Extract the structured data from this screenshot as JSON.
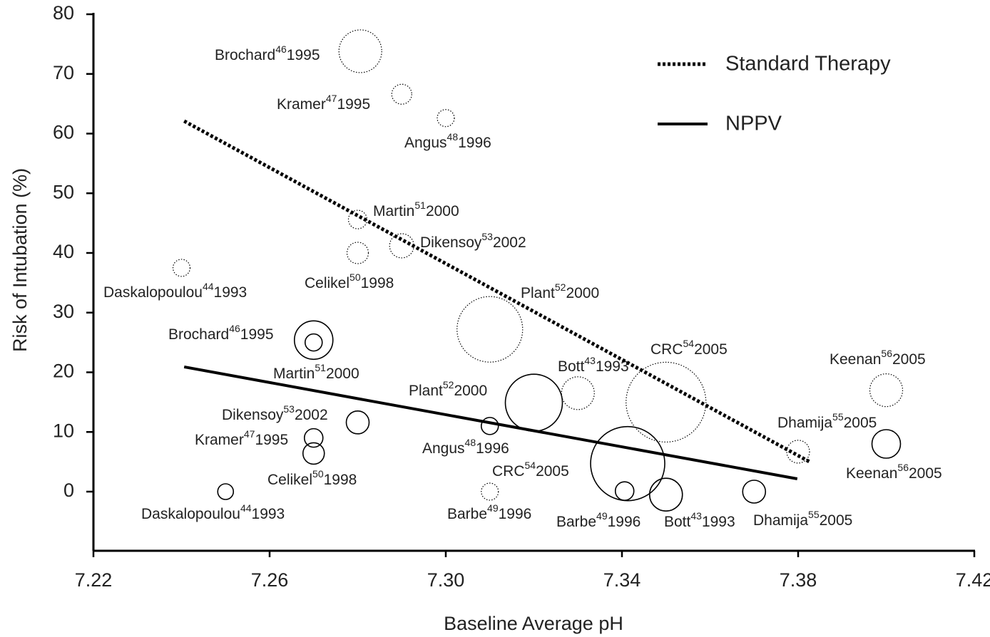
{
  "chart_data": {
    "type": "bubble",
    "xlabel": "Baseline Average pH",
    "ylabel": "Risk of Intubation (%)",
    "xlim": [
      7.22,
      7.42
    ],
    "xticks": [
      7.22,
      7.26,
      {
        "value": 7.3,
        "label": "7.30"
      },
      7.34,
      7.38,
      7.42
    ],
    "ylim": [
      -10,
      80
    ],
    "yticks": [
      0,
      10,
      20,
      30,
      40,
      50,
      60,
      70,
      80
    ],
    "grid": false,
    "legend": "upper right",
    "series": [
      {
        "name": "Standard Therapy",
        "color": "#000000",
        "line_style": "dotted",
        "x": [
          7.2806,
          7.29,
          7.3,
          7.28,
          7.29,
          7.28,
          7.24,
          7.31,
          7.33,
          7.35,
          7.4,
          7.38,
          7.31
        ],
        "y": [
          73.8,
          66.6,
          62.6,
          45.6,
          41.2,
          40,
          37.5,
          27.2,
          16.5,
          15,
          17,
          6.7,
          0
        ],
        "sizes": [
          30,
          14,
          12,
          13,
          17,
          15,
          12,
          46,
          23,
          56,
          23,
          16,
          12
        ],
        "labels": [
          {
            "name": "Brochard",
            "ref": "46",
            "year": "1995"
          },
          {
            "name": "Kramer",
            "ref": "47",
            "year": "1995"
          },
          {
            "name": "Angus",
            "ref": "48",
            "year": "1996"
          },
          {
            "name": "Martin",
            "ref": "51",
            "year": "2000"
          },
          {
            "name": "Dikensoy",
            "ref": "53",
            "year": "2002"
          },
          {
            "name": "Celikel",
            "ref": "50",
            "year": "1998"
          },
          {
            "name": "Daskalopoulou",
            "ref": "44",
            "year": "1993"
          },
          {
            "name": "Plant",
            "ref": "52",
            "year": "2000"
          },
          {
            "name": "Bott",
            "ref": "43",
            "year": "1993"
          },
          {
            "name": "CRC",
            "ref": "54",
            "year": "2005"
          },
          {
            "name": "Keenan",
            "ref": "56",
            "year": "2005"
          },
          {
            "name": "Dhamija",
            "ref": "55",
            "year": "2005"
          },
          {
            "name": "Barbe",
            "ref": "49",
            "year": "1996"
          }
        ],
        "trend_x": [
          7.2406,
          7.3826
        ],
        "trend_y": [
          62.1,
          5.0
        ]
      },
      {
        "name": "NPPV",
        "color": "#000000",
        "line_style": "solid",
        "x": [
          7.27,
          7.27,
          7.28,
          7.27,
          7.27,
          7.25,
          7.32,
          7.31,
          7.3413,
          7.3406,
          7.35,
          7.37,
          7.4
        ],
        "y": [
          25.4,
          25,
          11.6,
          9,
          6.4,
          0,
          14.9,
          11,
          4.7,
          0.1,
          -0.5,
          0,
          8
        ],
        "sizes": [
          27,
          12,
          16,
          13,
          15,
          11,
          40,
          12,
          52,
          13,
          23,
          16,
          20
        ],
        "labels": [
          {
            "name": "Brochard",
            "ref": "46",
            "year": "1995"
          },
          {
            "name": "Martin",
            "ref": "51",
            "year": "2000"
          },
          {
            "name": "Dikensoy",
            "ref": "53",
            "year": "2002"
          },
          {
            "name": "Kramer",
            "ref": "47",
            "year": "1995"
          },
          {
            "name": "Celikel",
            "ref": "50",
            "year": "1998"
          },
          {
            "name": "Daskalopoulou",
            "ref": "44",
            "year": "1993"
          },
          {
            "name": "Plant",
            "ref": "52",
            "year": "2000"
          },
          {
            "name": "Angus",
            "ref": "48",
            "year": "1996"
          },
          {
            "name": "CRC",
            "ref": "54",
            "year": "2005"
          },
          {
            "name": "Barbe",
            "ref": "49",
            "year": "1996"
          },
          {
            "name": "Bott",
            "ref": "43",
            "year": "1993"
          },
          {
            "name": "Dhamija",
            "ref": "55",
            "year": "2005"
          },
          {
            "name": "Keenan",
            "ref": "56",
            "year": "2005"
          }
        ],
        "trend_x": [
          7.2406,
          7.3798
        ],
        "trend_y": [
          20.9,
          2.15
        ]
      }
    ]
  }
}
